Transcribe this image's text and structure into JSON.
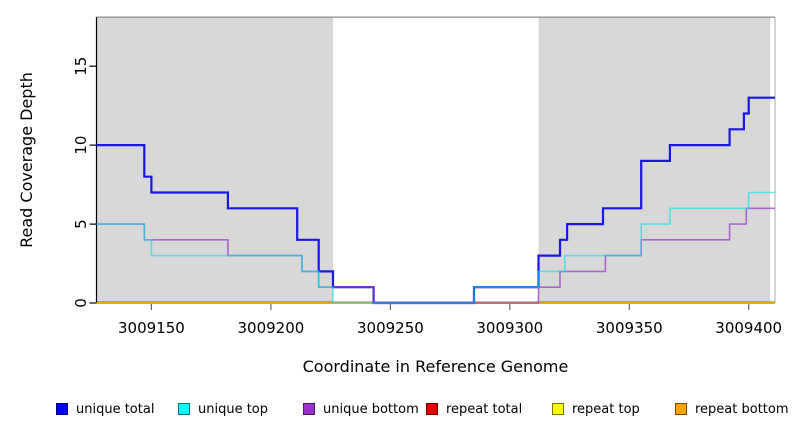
{
  "figure": {
    "background": "#FFFFFF"
  },
  "chart_data": {
    "type": "line",
    "subtype": "step-coverage",
    "title": "",
    "xlabel": "Coordinate in Reference Genome",
    "ylabel": "Read Coverage Depth",
    "xlim": [
      3009127,
      3009411
    ],
    "ylim": [
      0,
      18
    ],
    "x_ticks": [
      3009150,
      3009200,
      3009250,
      3009300,
      3009350,
      3009400
    ],
    "y_ticks": [
      0,
      5,
      10,
      15
    ],
    "grid": false,
    "panel_color": "#D8D8D8",
    "axis_color": "#000000",
    "border_color": "#8C8C8C",
    "tick_color": "#666666",
    "shaded_regions": [
      {
        "from": 3009127,
        "to": 3009226
      },
      {
        "from": 3009312,
        "to": 3009409
      }
    ],
    "series": [
      {
        "name": "unique total",
        "color": "#1717E6",
        "line_width": 2.2,
        "opacity": 1,
        "points": [
          [
            3009127,
            10
          ],
          [
            3009147,
            8
          ],
          [
            3009150,
            7
          ],
          [
            3009182,
            6
          ],
          [
            3009211,
            4
          ],
          [
            3009220,
            2
          ],
          [
            3009226,
            1
          ],
          [
            3009243,
            0
          ],
          [
            3009285,
            1
          ],
          [
            3009312,
            3
          ],
          [
            3009321,
            4
          ],
          [
            3009324,
            5
          ],
          [
            3009339,
            6
          ],
          [
            3009355,
            9
          ],
          [
            3009367,
            10
          ],
          [
            3009392,
            11
          ],
          [
            3009398,
            12
          ],
          [
            3009400,
            13
          ]
        ]
      },
      {
        "name": "unique top",
        "color": "#00E8E8",
        "line_width": 1.6,
        "opacity": 0.6,
        "points": [
          [
            3009127,
            5
          ],
          [
            3009147,
            4
          ],
          [
            3009150,
            3
          ],
          [
            3009213,
            2
          ],
          [
            3009220,
            1
          ],
          [
            3009226,
            0
          ],
          [
            3009285,
            1
          ],
          [
            3009312,
            2
          ],
          [
            3009323,
            3
          ],
          [
            3009355,
            5
          ],
          [
            3009367,
            6
          ],
          [
            3009400,
            7
          ]
        ]
      },
      {
        "name": "unique bottom",
        "color": "#9933CC",
        "line_width": 1.6,
        "opacity": 0.7,
        "points": [
          [
            3009127,
            5
          ],
          [
            3009147,
            4
          ],
          [
            3009182,
            3
          ],
          [
            3009213,
            2
          ],
          [
            3009220,
            1
          ],
          [
            3009243,
            0
          ],
          [
            3009312,
            1
          ],
          [
            3009321,
            2
          ],
          [
            3009340,
            3
          ],
          [
            3009355,
            4
          ],
          [
            3009392,
            5
          ],
          [
            3009399,
            6
          ]
        ]
      },
      {
        "name": "repeat total",
        "color": "#E60000",
        "line_width": 1.4,
        "opacity": 1,
        "points": [
          [
            3009127,
            0
          ]
        ]
      },
      {
        "name": "repeat top",
        "color": "#FFFF00",
        "line_width": 1.4,
        "opacity": 1,
        "points": [
          [
            3009127,
            0
          ]
        ]
      },
      {
        "name": "repeat bottom",
        "color": "#FFA500",
        "line_width": 1.8,
        "opacity": 1,
        "points": [
          [
            3009127,
            0
          ]
        ]
      }
    ],
    "legend": [
      {
        "label": "unique total",
        "color": "#0000FF"
      },
      {
        "label": "unique top",
        "color": "#00FFFF"
      },
      {
        "label": "unique bottom",
        "color": "#9933CC"
      },
      {
        "label": "repeat total",
        "color": "#EE0000"
      },
      {
        "label": "repeat top",
        "color": "#FFFF00"
      },
      {
        "label": "repeat bottom",
        "color": "#FFA500"
      }
    ],
    "legend_position": "bottom"
  }
}
